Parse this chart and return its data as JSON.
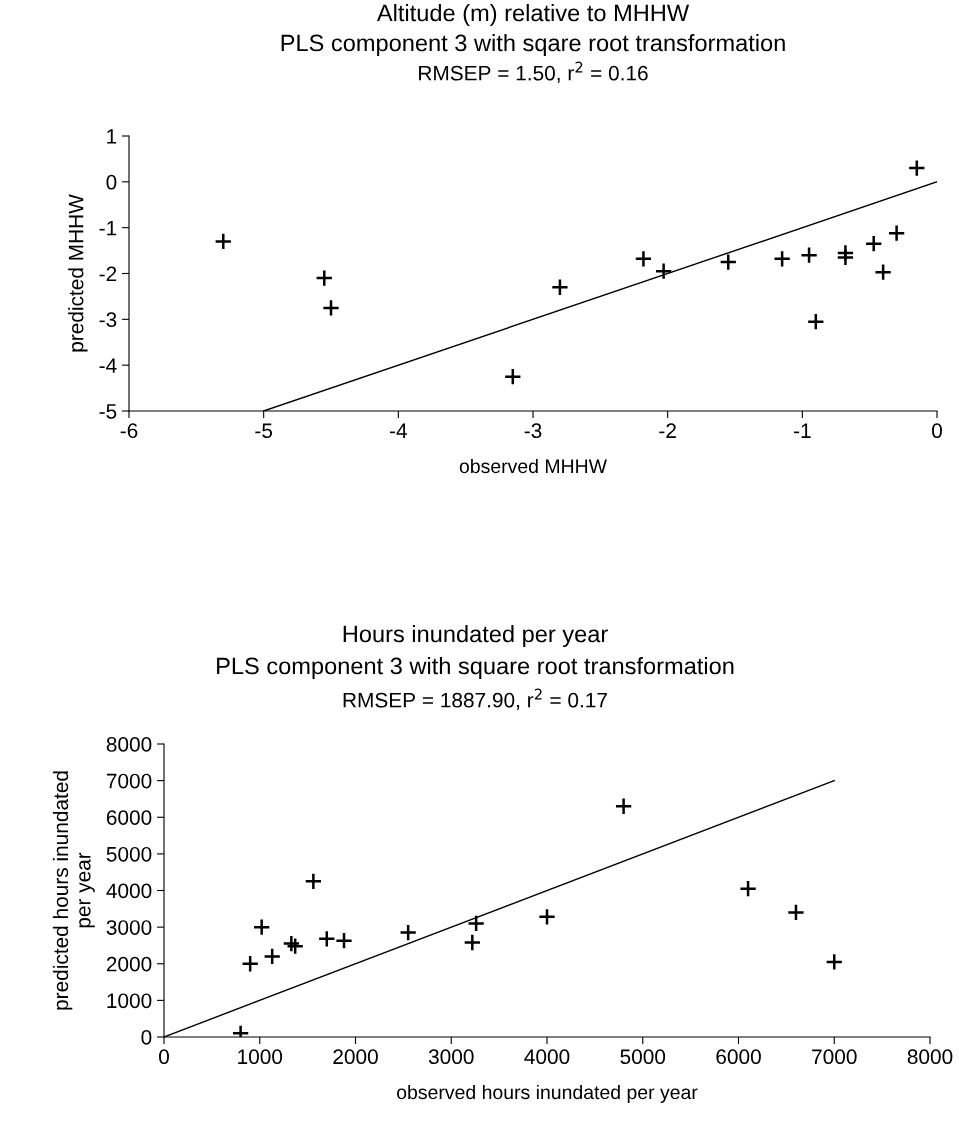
{
  "chart_data": [
    {
      "type": "scatter",
      "title": "Altitude (m) relative to MHHW",
      "subtitle": "PLS component 3 with sqare root transformation",
      "annotations": [
        "RMSEP = 1.50, r$^{2}$ = 0.16"
      ],
      "xlabel": "observed MHHW",
      "ylabel": "predicted MHHW",
      "xlim": [
        -6,
        0
      ],
      "xticks": [
        -6,
        -5,
        -4,
        -3,
        -2,
        -1,
        0
      ],
      "ylim": [
        -5,
        1
      ],
      "yticks": [
        -5,
        -4,
        -3,
        -2,
        -1,
        0,
        1
      ],
      "grid": false,
      "legend": false,
      "series": [
        {
          "marker": "cross",
          "color": "#000000",
          "x": [
            -5.3,
            -4.55,
            -4.5,
            -3.15,
            -2.8,
            -2.18,
            -2.03,
            -1.55,
            -1.15,
            -0.95,
            -0.9,
            -0.68,
            -0.68,
            -0.47,
            -0.4,
            -0.3,
            -0.15
          ],
          "values": [
            -1.3,
            -2.1,
            -2.75,
            -4.25,
            -2.3,
            -1.68,
            -1.95,
            -1.75,
            -1.68,
            -1.6,
            -3.05,
            -1.55,
            -1.65,
            -1.35,
            -1.97,
            -1.12,
            0.3
          ]
        },
        {
          "type": "line",
          "color": "#000000",
          "x": [
            -5,
            0
          ],
          "values": [
            -5,
            0
          ]
        }
      ]
    },
    {
      "type": "scatter",
      "title": "Hours inundated per year",
      "subtitle": "PLS component 3 with square root transformation",
      "annotations": [
        "RMSEP = 1887.90, r$^{2}$ = 0.17"
      ],
      "xlabel": "observed hours inundated per year",
      "ylabel": "predicted hours inundated\nper year",
      "xlim": [
        0,
        8000
      ],
      "xticks": [
        0,
        1000,
        2000,
        3000,
        4000,
        5000,
        6000,
        7000,
        8000
      ],
      "ylim": [
        0,
        8000
      ],
      "yticks": [
        0,
        1000,
        2000,
        3000,
        4000,
        5000,
        6000,
        7000,
        8000
      ],
      "grid": false,
      "legend": false,
      "series": [
        {
          "marker": "cross",
          "color": "#000000",
          "x": [
            800,
            900,
            1020,
            1130,
            1330,
            1370,
            1560,
            1700,
            1880,
            2550,
            3220,
            3260,
            4000,
            4800,
            6100,
            6600,
            7000
          ],
          "values": [
            100,
            2000,
            3000,
            2200,
            2550,
            2480,
            4250,
            2680,
            2630,
            2850,
            2580,
            3100,
            3280,
            6300,
            4050,
            3400,
            2050
          ]
        },
        {
          "type": "line",
          "color": "#000000",
          "x": [
            0,
            7000
          ],
          "values": [
            0,
            7000
          ]
        }
      ]
    }
  ]
}
